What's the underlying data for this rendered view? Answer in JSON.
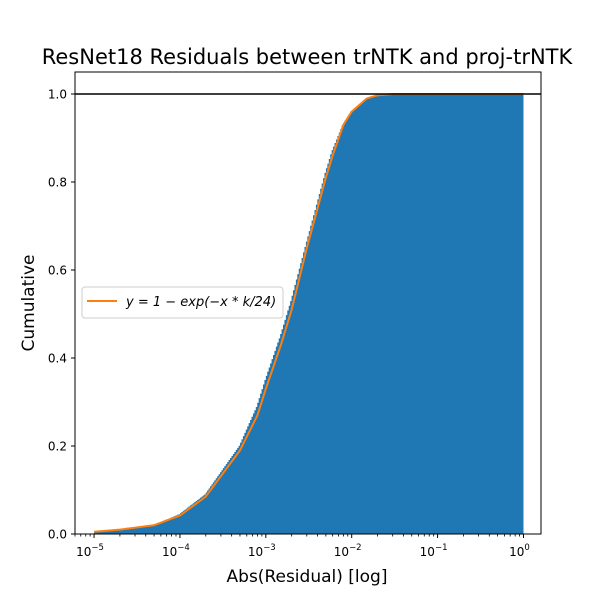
{
  "chart_data": {
    "type": "area",
    "title": "ResNet18 Residuals between trNTK and proj-trNTK",
    "xlabel": "Abs(Residual) [log]",
    "ylabel": "Cumulative",
    "xscale": "log",
    "xlim": [
      6e-06,
      1.6
    ],
    "ylim": [
      0.0,
      1.05
    ],
    "x_ticks": [
      {
        "value": 1e-05,
        "base": "10",
        "exp": "−5"
      },
      {
        "value": 0.0001,
        "base": "10",
        "exp": "−4"
      },
      {
        "value": 0.001,
        "base": "10",
        "exp": "−3"
      },
      {
        "value": 0.01,
        "base": "10",
        "exp": "−2"
      },
      {
        "value": 0.1,
        "base": "10",
        "exp": "−1"
      },
      {
        "value": 1,
        "base": "10",
        "exp": "0"
      }
    ],
    "y_ticks": [
      {
        "value": 0.0,
        "label": "0.0"
      },
      {
        "value": 0.2,
        "label": "0.2"
      },
      {
        "value": 0.4,
        "label": "0.4"
      },
      {
        "value": 0.6,
        "label": "0.6"
      },
      {
        "value": 0.8,
        "label": "0.8"
      },
      {
        "value": 1.0,
        "label": "1.0"
      }
    ],
    "hline": {
      "y": 1.0,
      "color": "#000000"
    },
    "series": [
      {
        "kind": "cumulative-histogram",
        "color": "#1f77b4",
        "x": [
          1e-05,
          2e-05,
          5e-05,
          0.0001,
          0.0002,
          0.0005,
          0.0008,
          0.001,
          0.0015,
          0.002,
          0.003,
          0.004,
          0.005,
          0.006,
          0.008,
          0.01,
          0.015,
          0.02,
          0.03,
          0.1,
          1
        ],
        "y": [
          0.005,
          0.01,
          0.02,
          0.045,
          0.09,
          0.2,
          0.29,
          0.35,
          0.45,
          0.53,
          0.66,
          0.75,
          0.82,
          0.87,
          0.93,
          0.96,
          0.99,
          0.995,
          1.0,
          1.0,
          1.0
        ]
      },
      {
        "kind": "line",
        "name": "$y=1-\\exp(-x*k/24)$",
        "color": "#ff7f0e",
        "x": [
          1e-05,
          2e-05,
          5e-05,
          0.0001,
          0.0002,
          0.0005,
          0.0008,
          0.001,
          0.0015,
          0.002,
          0.003,
          0.004,
          0.005,
          0.006,
          0.008,
          0.01,
          0.015,
          0.02,
          0.03,
          0.1,
          1
        ],
        "y": [
          0.005,
          0.01,
          0.02,
          0.042,
          0.085,
          0.19,
          0.27,
          0.33,
          0.43,
          0.51,
          0.65,
          0.74,
          0.81,
          0.86,
          0.93,
          0.96,
          0.99,
          0.997,
          1.0,
          1.0,
          1.0
        ]
      }
    ],
    "legend": {
      "location": "center-left",
      "entries": [
        {
          "label": "y = 1 − exp(−x * k/24)",
          "color": "#ff7f0e"
        }
      ]
    }
  }
}
